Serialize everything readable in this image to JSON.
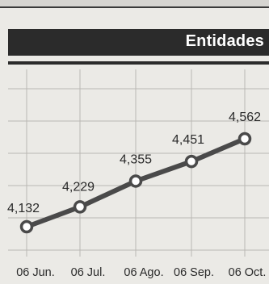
{
  "header": {
    "title": "Entidades"
  },
  "colors": {
    "line": "#4a4a4a",
    "grid": "#b9b8b4",
    "marker_fill": "#ffffff"
  },
  "chart_data": {
    "type": "line",
    "title": "Entidades",
    "categories": [
      "06 Jun.",
      "06 Jul.",
      "06 Ago.",
      "06 Sep.",
      "06 Oct."
    ],
    "values": [
      4132,
      4229,
      4355,
      4451,
      4562
    ],
    "data_labels": [
      "4,132",
      "4,229",
      "4,355",
      "4,451",
      "4,562"
    ],
    "xlabel": "",
    "ylabel": "",
    "grid": true,
    "legend": "none"
  }
}
